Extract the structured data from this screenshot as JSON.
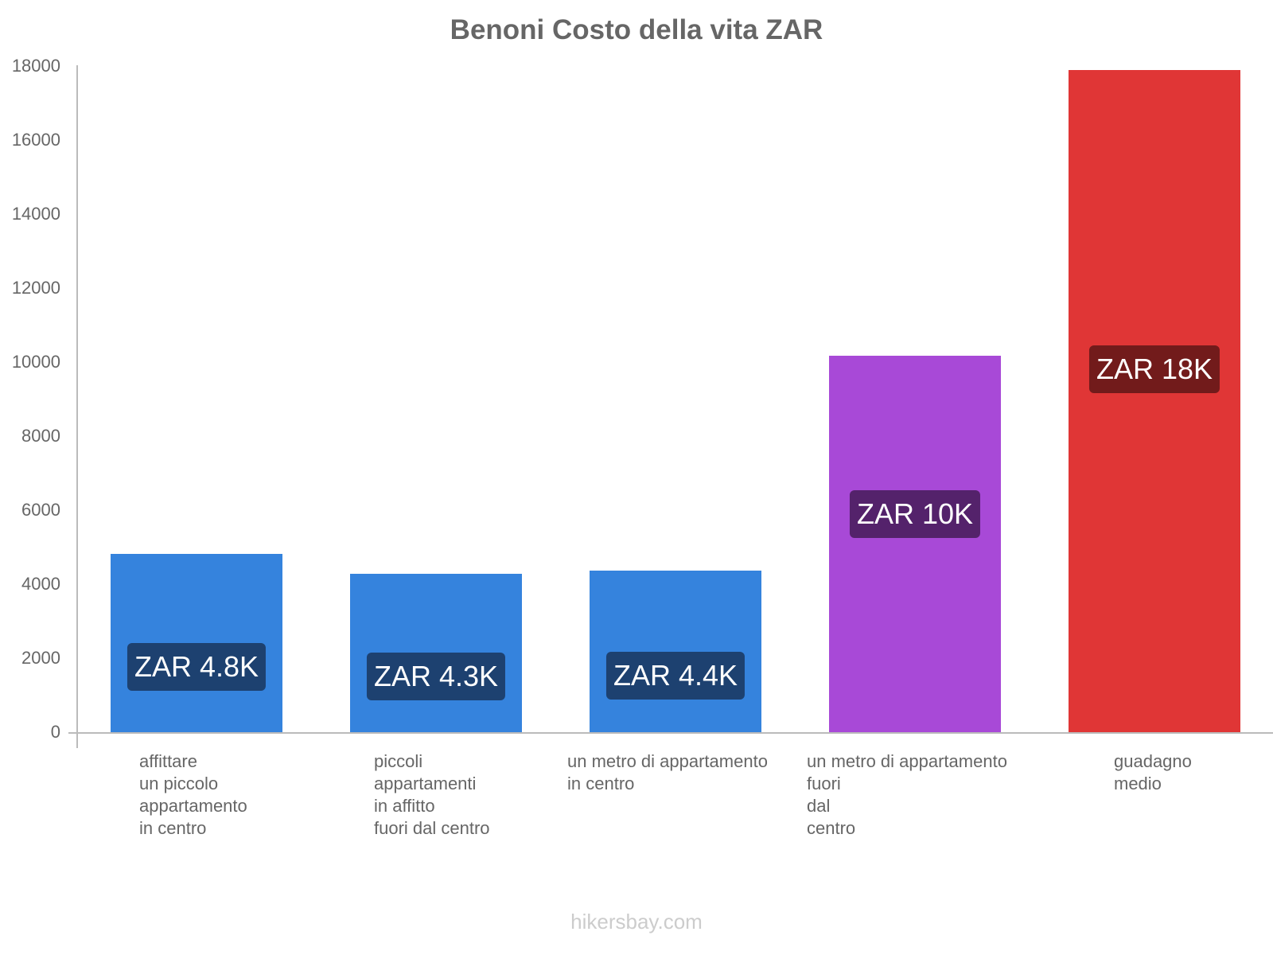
{
  "chart_data": {
    "type": "bar",
    "title": "Benoni Costo della vita ZAR",
    "xlabel": "",
    "ylabel": "",
    "ylim": [
      0,
      18000
    ],
    "yticks": [
      "0",
      "2000",
      "4000",
      "6000",
      "8000",
      "10000",
      "12000",
      "14000",
      "16000",
      "18000"
    ],
    "grid": false,
    "legend": "none",
    "categories": [
      "affittare un piccolo appartamento in centro",
      "piccoli appartamenti in affitto fuori dal centro",
      "un metro di appartamento in centro",
      "un metro di appartamento fuori dal centro",
      "guadagno medio"
    ],
    "values": [
      4820,
      4280,
      4360,
      10170,
      17900
    ],
    "data_labels": [
      "ZAR 4.8K",
      "ZAR 4.3K",
      "ZAR 4.4K",
      "ZAR 10K",
      "ZAR 18K"
    ],
    "colors": [
      "#3583dd",
      "#3583dd",
      "#3583dd",
      "#a849d7",
      "#e03636"
    ],
    "label_bg_colors": [
      "#1d4170",
      "#1d4170",
      "#1d4170",
      "#54226b",
      "#721b1b"
    ]
  },
  "header": {
    "title": "Benoni Costo della vita ZAR"
  },
  "xaxis_labels": [
    "affittare\nun piccolo\nappartamento\nin centro",
    "piccoli\nappartamenti\nin affitto\nfuori dal centro",
    "un metro di appartamento\nin centro",
    "un metro di appartamento\nfuori\ndal\ncentro",
    "guadagno\nmedio"
  ],
  "footer": {
    "watermark": "hikersbay.com"
  }
}
